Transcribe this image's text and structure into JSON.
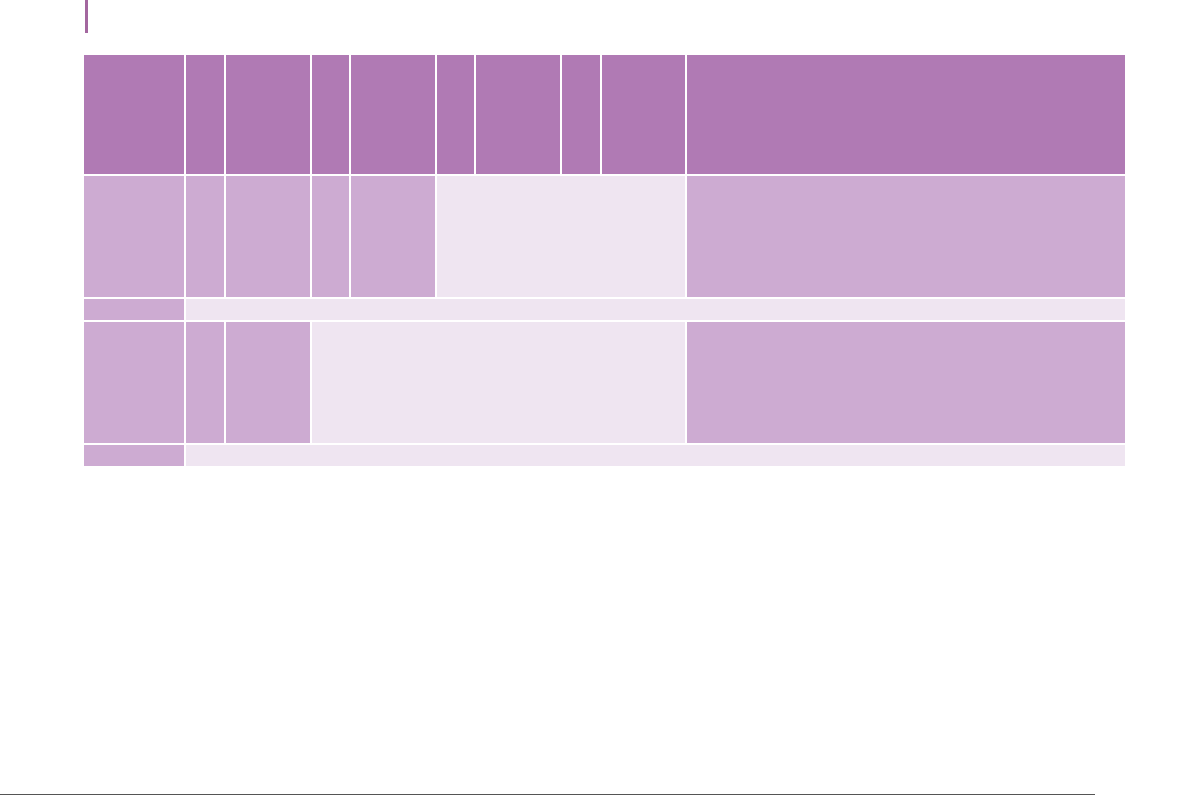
{
  "colors": {
    "accent": "#a3679f",
    "header": "#b07ab4",
    "cell_mid": "#cdabd2",
    "cell_light": "#efe5f1",
    "rule": "#555555"
  },
  "table": {
    "header": [
      "",
      "",
      "",
      "",
      "",
      "",
      "",
      "",
      "",
      ""
    ],
    "row1": [
      "",
      "",
      "",
      "",
      "",
      "",
      ""
    ],
    "row2": [
      "",
      ""
    ],
    "row3": [
      "",
      "",
      "",
      "",
      ""
    ],
    "row4": [
      "",
      ""
    ]
  }
}
